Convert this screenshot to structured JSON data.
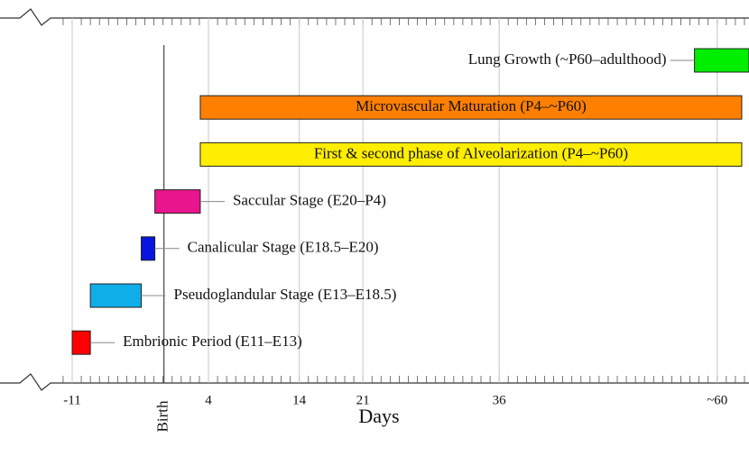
{
  "chart_data": {
    "type": "timeline",
    "x_label": "Days",
    "xlim": [
      -17,
      63.5
    ],
    "xticks": [
      -11,
      4,
      14,
      21,
      36,
      {
        "value": 60,
        "label": "~60"
      }
    ],
    "grid": true,
    "marker": {
      "label": "Birth",
      "value": -0.9
    },
    "tasks": [
      {
        "name": "Lung Growth (~P60–adulthood)",
        "start": 57.5,
        "end": 63.5,
        "color": "#00ee00",
        "label_position": "left"
      },
      {
        "name": "Microvascular Maturation (P4–~P60)",
        "start": 3.1,
        "end": 62.7,
        "color": "#ff7f00",
        "label_position": "inside"
      },
      {
        "name": "First & second phase of Alveolarization (P4–~P60)",
        "start": 3.1,
        "end": 62.7,
        "color": "#ffee00",
        "label_position": "inside"
      },
      {
        "name": "Saccular Stage (E20–P4)",
        "start": -1.9,
        "end": 3.1,
        "color": "#e8158c",
        "label_position": "right"
      },
      {
        "name": "Canalicular Stage (E18.5–E20)",
        "start": -3.4,
        "end": -1.9,
        "color": "#0a14e0",
        "label_position": "right"
      },
      {
        "name": "Pseudoglandular Stage (E13–E18.5)",
        "start": -9.0,
        "end": -3.4,
        "color": "#10aee8",
        "label_position": "right"
      },
      {
        "name": "Embrionic Period (E11–E13)",
        "start": -11,
        "end": -9.0,
        "color": "#ff0000",
        "label_position": "right"
      }
    ]
  }
}
